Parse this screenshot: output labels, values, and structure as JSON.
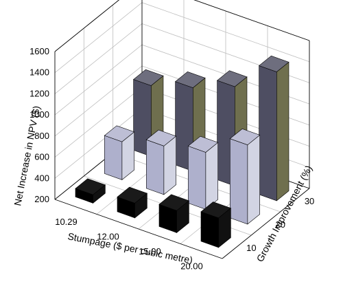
{
  "chart_data": {
    "type": "bar",
    "variant": "3d-column",
    "title": "",
    "ylabel": "Net Increase in NPV ($)",
    "xlabel": "Stumpage ($ per cubic metre)",
    "zlabel": "Growth Improvement (%)",
    "categories": [
      "10.29",
      "12.00",
      "15.00",
      "20.00"
    ],
    "ylim": [
      200,
      1600
    ],
    "yticks": [
      200,
      400,
      600,
      800,
      1000,
      1200,
      1400,
      1600
    ],
    "grid": true,
    "series": [
      {
        "name": "10",
        "color": "#000000",
        "values": [
          280,
          340,
          410,
          480
        ]
      },
      {
        "name": "20",
        "color": "#aeb0cc",
        "values": [
          560,
          660,
          740,
          950
        ]
      },
      {
        "name": "30",
        "color": "#4e4e62",
        "values": [
          870,
          990,
          1140,
          1420
        ]
      }
    ]
  }
}
